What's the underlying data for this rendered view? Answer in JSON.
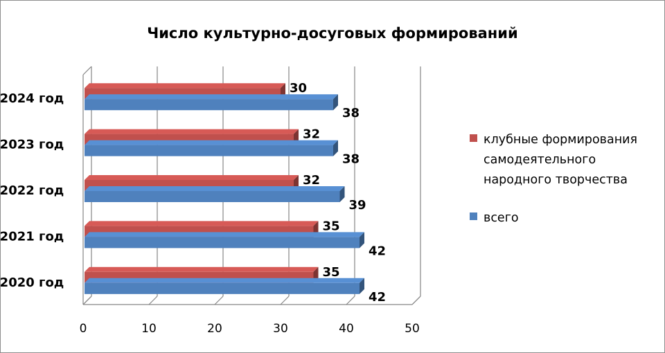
{
  "chart_data": {
    "type": "bar",
    "orientation": "horizontal",
    "title": "Число культурно-досуговых формирований",
    "categories": [
      "2020 год",
      "2021 год",
      "2022 год",
      "2023 год",
      "2024 год"
    ],
    "series": [
      {
        "name": "клубные формирования самодеятельного народного творчества",
        "values": [
          35,
          35,
          32,
          32,
          30
        ],
        "color": "#c0504d"
      },
      {
        "name": "всего",
        "values": [
          42,
          42,
          39,
          38,
          38
        ],
        "color": "#4f81bd"
      }
    ],
    "xlim": [
      0,
      50
    ],
    "x_ticks": [
      "0",
      "10",
      "20",
      "30",
      "40",
      "50"
    ],
    "grid": true,
    "legend_position": "right",
    "style": "3d-bar",
    "data_labels": true
  }
}
